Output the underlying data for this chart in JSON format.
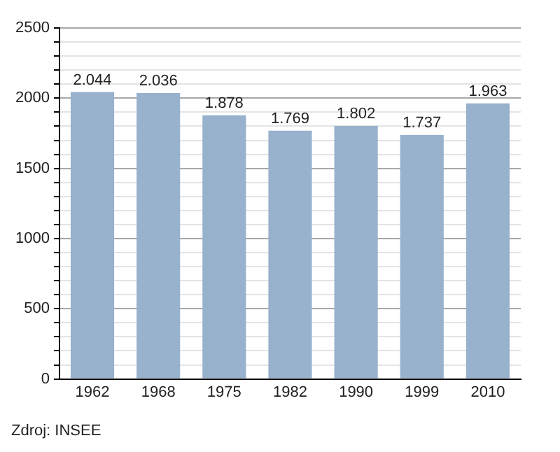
{
  "chart_data": {
    "type": "bar",
    "categories": [
      "1962",
      "1968",
      "1975",
      "1982",
      "1990",
      "1999",
      "2010"
    ],
    "values": [
      2044,
      2036,
      1878,
      1769,
      1802,
      1737,
      1963
    ],
    "value_labels": [
      "2.044",
      "2.036",
      "1.878",
      "1.769",
      "1.802",
      "1.737",
      "1.963"
    ],
    "color": "#98b1cc",
    "ylim": [
      0,
      2500
    ],
    "yticks": [
      0,
      {
        "value": 100,
        "label": null
      },
      {
        "value": 200,
        "label": null
      },
      {
        "value": 300,
        "label": null
      },
      {
        "value": 400,
        "label": null
      },
      500,
      {
        "value": 600,
        "label": null
      },
      {
        "value": 700,
        "label": null
      },
      {
        "value": 800,
        "label": null
      },
      {
        "value": 900,
        "label": null
      },
      1000,
      {
        "value": 1100,
        "label": null
      },
      {
        "value": 1200,
        "label": null
      },
      {
        "value": 1300,
        "label": null
      },
      {
        "value": 1400,
        "label": null
      },
      1500,
      {
        "value": 1600,
        "label": null
      },
      {
        "value": 1700,
        "label": null
      },
      {
        "value": 1800,
        "label": null
      },
      {
        "value": 1900,
        "label": null
      },
      2000,
      {
        "value": 2100,
        "label": null
      },
      {
        "value": 2200,
        "label": null
      },
      {
        "value": 2300,
        "label": null
      },
      {
        "value": 2400,
        "label": null
      },
      2500
    ],
    "grid": "y",
    "annotations": [
      "Zdroj: INSEE"
    ]
  }
}
